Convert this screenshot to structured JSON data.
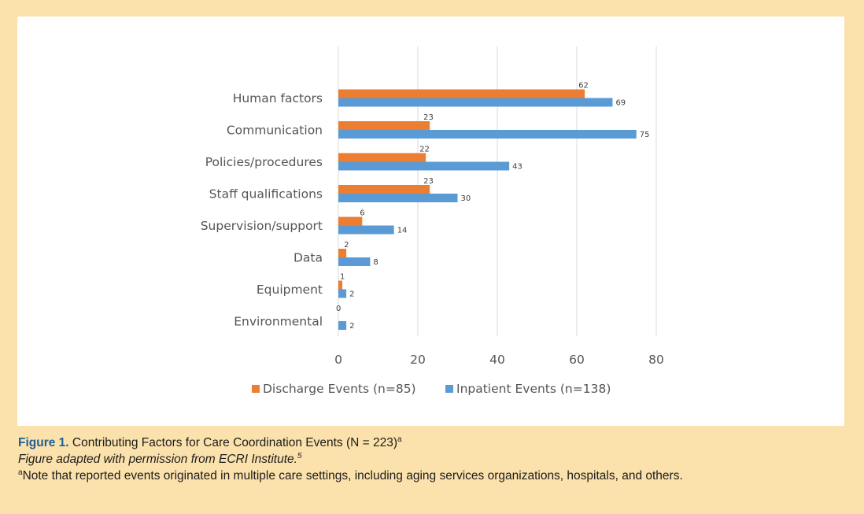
{
  "chart_data": {
    "type": "bar",
    "orientation": "horizontal",
    "categories": [
      "Human factors",
      "Communication",
      "Policies/procedures",
      "Staff qualifications",
      "Supervision/support",
      "Data",
      "Equipment",
      "Environmental"
    ],
    "series": [
      {
        "name": "Discharge Events (n=85)",
        "color": "#ed7d31",
        "values": [
          62,
          23,
          22,
          23,
          6,
          2,
          1,
          0
        ]
      },
      {
        "name": "Inpatient Events (n=138)",
        "color": "#5b9bd5",
        "values": [
          69,
          75,
          43,
          30,
          14,
          8,
          2,
          2
        ]
      }
    ],
    "xlim": [
      0,
      80
    ],
    "xticks": [
      0,
      20,
      40,
      60,
      80
    ],
    "grid": true,
    "legend_position": "bottom"
  },
  "caption": {
    "figure_label": "Figure 1.",
    "title": "Contributing Factors for Care Coordination Events (N = 223)",
    "title_sup": "a",
    "source": "Figure adapted with permission from ECRI Institute.",
    "source_sup": "5",
    "note_sup": "a",
    "note": "Note that reported events originated in multiple care settings, including aging services organizations, hospitals, and others."
  }
}
